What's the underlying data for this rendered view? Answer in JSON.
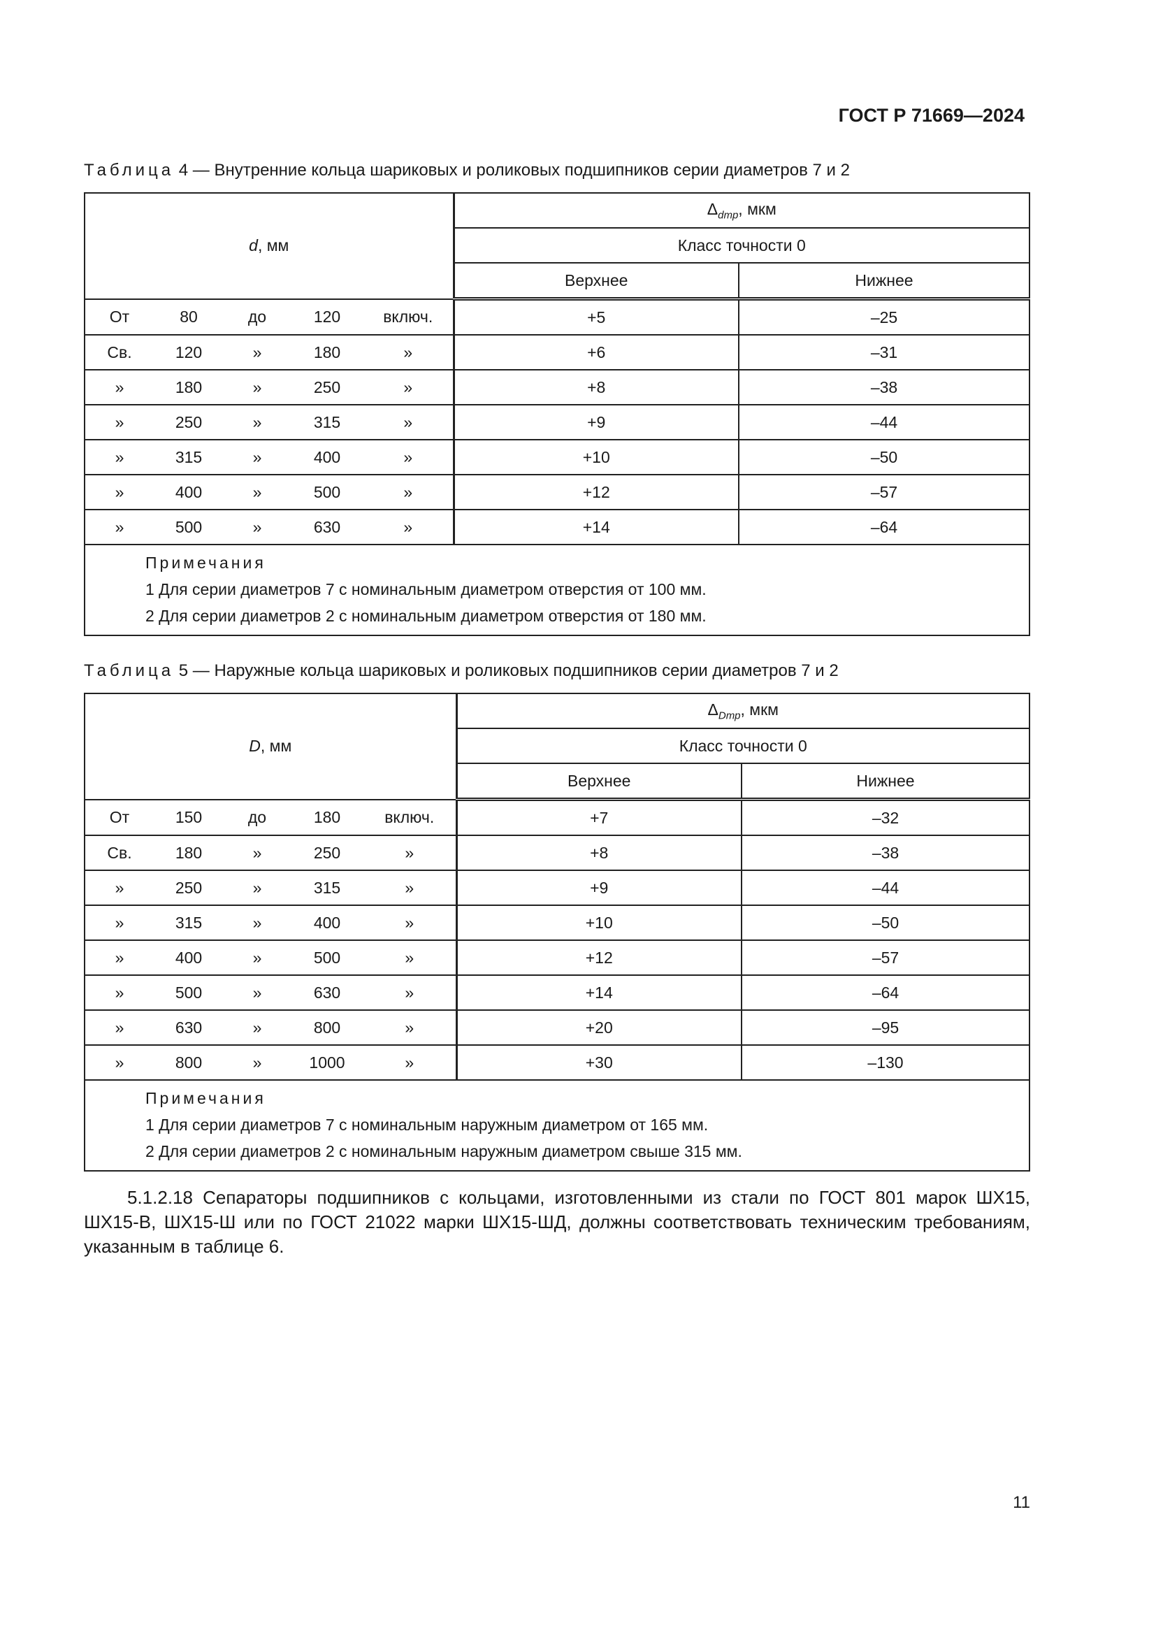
{
  "header": {
    "doc_id": "ГОСТ Р 71669—2024"
  },
  "table4": {
    "caption_word": "Таблица",
    "caption_rest": "4 — Внутренние кольца шариковых и роликовых подшипников серии диаметров 7 и 2",
    "col_d_sym": "d",
    "col_d_unit": ", мм",
    "delta_sym": "Δ",
    "delta_sub": "dmp",
    "delta_unit": ", мкм",
    "class": "Класс точности 0",
    "upper": "Верхнее",
    "lower": "Нижнее",
    "rows": [
      [
        "От",
        "80",
        "до",
        "120",
        "включ.",
        "+5",
        "–25"
      ],
      [
        "Св.",
        "120",
        "»",
        "180",
        "»",
        "+6",
        "–31"
      ],
      [
        "»",
        "180",
        "»",
        "250",
        "»",
        "+8",
        "–38"
      ],
      [
        "»",
        "250",
        "»",
        "315",
        "»",
        "+9",
        "–44"
      ],
      [
        "»",
        "315",
        "»",
        "400",
        "»",
        "+10",
        "–50"
      ],
      [
        "»",
        "400",
        "»",
        "500",
        "»",
        "+12",
        "–57"
      ],
      [
        "»",
        "500",
        "»",
        "630",
        "»",
        "+14",
        "–64"
      ]
    ],
    "notes_title": "Примечания",
    "notes": [
      "1 Для серии диаметров 7 с номинальным диаметром отверстия от 100 мм.",
      "2 Для серии диаметров 2 с номинальным диаметром отверстия от 180 мм."
    ]
  },
  "table5": {
    "caption_word": "Таблица",
    "caption_rest": "5 — Наружные кольца шариковых и роликовых подшипников серии диаметров 7 и 2",
    "col_d_sym": "D",
    "col_d_unit": ", мм",
    "delta_sym": "Δ",
    "delta_sub": "Dmp",
    "delta_unit": ", мкм",
    "class": "Класс точности 0",
    "upper": "Верхнее",
    "lower": "Нижнее",
    "rows": [
      [
        "От",
        "150",
        "до",
        "180",
        "включ.",
        "+7",
        "–32"
      ],
      [
        "Св.",
        "180",
        "»",
        "250",
        "»",
        "+8",
        "–38"
      ],
      [
        "»",
        "250",
        "»",
        "315",
        "»",
        "+9",
        "–44"
      ],
      [
        "»",
        "315",
        "»",
        "400",
        "»",
        "+10",
        "–50"
      ],
      [
        "»",
        "400",
        "»",
        "500",
        "»",
        "+12",
        "–57"
      ],
      [
        "»",
        "500",
        "»",
        "630",
        "»",
        "+14",
        "–64"
      ],
      [
        "»",
        "630",
        "»",
        "800",
        "»",
        "+20",
        "–95"
      ],
      [
        "»",
        "800",
        "»",
        "1000",
        "»",
        "+30",
        "–130"
      ]
    ],
    "notes_title": "Примечания",
    "notes": [
      "1 Для серии диаметров 7 с номинальным наружным диаметром от 165 мм.",
      "2 Для серии диаметров 2 с номинальным наружным диаметром свыше 315 мм."
    ]
  },
  "paragraph": "5.1.2.18 Сепараторы подшипников с кольцами, изготовленными из стали по ГОСТ 801 марок ШХ15, ШХ15-В, ШХ15-Ш или по ГОСТ 21022 марки ШХ15-ШД, должны соответствовать техническим требованиям, указанным в таблице 6.",
  "page_number": "11"
}
